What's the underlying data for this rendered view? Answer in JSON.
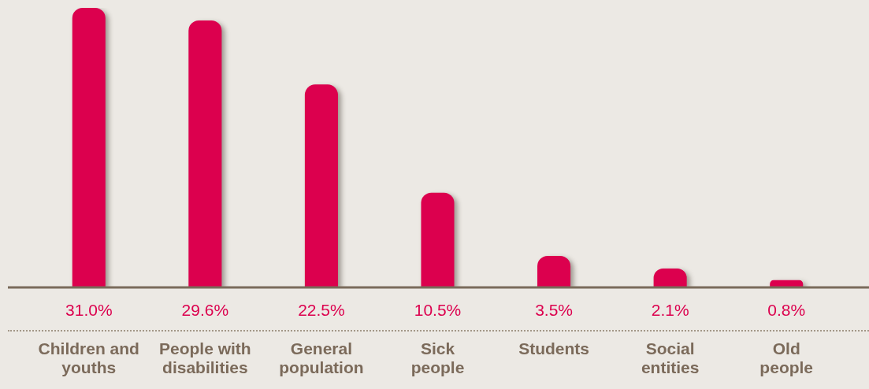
{
  "chart_data": {
    "type": "bar",
    "categories": [
      "Children and youths",
      "People with disabilities",
      "General population",
      "Sick people",
      "Students",
      "Social entities",
      "Old people"
    ],
    "values": [
      31.0,
      29.6,
      22.5,
      10.5,
      3.5,
      2.1,
      0.8
    ],
    "value_labels": [
      "31.0%",
      "29.6%",
      "22.5%",
      "10.5%",
      "3.5%",
      "2.1%",
      "0.8%"
    ],
    "color": "#dc004e"
  }
}
